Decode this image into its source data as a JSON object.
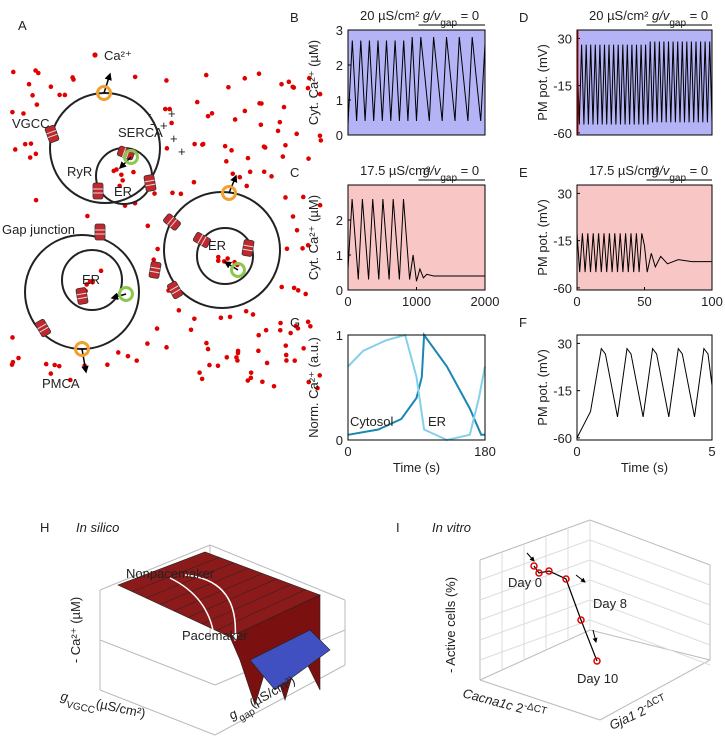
{
  "panels": {
    "A": {
      "label": "A",
      "ca": "Ca²⁺",
      "vgcc": "VGCC",
      "serca": "SERCA",
      "ryr": "RyR",
      "er": "ER",
      "gap_junction": "Gap junction",
      "pmca": "PMCA",
      "plus": "+",
      "minus": "-"
    },
    "H": {
      "label": "H",
      "title": "In silico",
      "nonpacemaker": "Nonpacemaker",
      "pacemaker": "Pacemaker",
      "zlabel": "- Ca²⁺ (µM)",
      "xlabel": {
        "main": "g",
        "sub": "VGCC",
        "rest": "(µS/cm²)"
      },
      "ylabel": {
        "main": "g",
        "sub": "gap",
        "rest": "(µS/cm²)"
      }
    },
    "I": {
      "label": "I",
      "title": "In vitro",
      "day0": "Day 0",
      "day8": "Day 8",
      "day10": "Day 10",
      "zlabel": "- Active cells (%)",
      "xlabel": {
        "main": "Cacna1c",
        "rest": " 2",
        "sup": "-ΔCT"
      },
      "ylabel": {
        "main": "Gja1",
        "rest": " 2",
        "sup": "-ΔCT"
      }
    }
  },
  "chart_data": [
    {
      "type": "line",
      "label": "B",
      "condition": "20 µS/cm²",
      "switch": {
        "main": "g/v",
        "sub": "gap",
        "rest": " = 0"
      },
      "ylabel": "Cyt. Ca²⁺ (µM)",
      "ylim": [
        0,
        3
      ],
      "yticks": [
        0,
        1,
        2,
        3
      ],
      "background": "#b3b3f5",
      "series": [
        {
          "color": "#000000",
          "values": [
            0.3,
            2.7,
            0.4,
            2.7,
            0.4,
            2.7,
            0.4,
            2.7,
            0.4,
            2.7,
            0.4,
            2.7,
            0.4,
            2.7,
            0.4,
            2.8,
            0.4,
            2.8,
            1.6,
            0.4,
            2.8,
            1.6,
            0.4,
            2.8,
            1.6,
            0.4,
            2.8,
            1.6,
            0.4,
            2.8,
            1.6,
            0.4,
            2.6
          ]
        }
      ]
    },
    {
      "type": "line",
      "label": "C",
      "condition": "17.5 µS/cm²",
      "switch": {
        "main": "g/v",
        "sub": "gap",
        "rest": " = 0"
      },
      "ylabel": "Cyt. Ca²⁺ (µM)",
      "xlim": [
        0,
        2000
      ],
      "xticks": [
        0,
        1000,
        2000
      ],
      "ylim": [
        0,
        3
      ],
      "yticks": [
        0,
        1,
        2
      ],
      "background": "#f9c6c6",
      "series": [
        {
          "color": "#000000",
          "x": [
            0,
            60,
            150,
            210,
            300,
            360,
            450,
            510,
            600,
            660,
            750,
            810,
            900,
            950,
            1000,
            1050,
            1100,
            1150,
            1250,
            2000
          ],
          "values": [
            0.6,
            2.6,
            0.3,
            2.6,
            0.3,
            2.6,
            0.3,
            2.6,
            0.3,
            2.6,
            0.3,
            2.6,
            0.3,
            1.0,
            0.25,
            0.6,
            0.35,
            0.45,
            0.4,
            0.4
          ]
        }
      ]
    },
    {
      "type": "line",
      "label": "D",
      "condition": "20 µS/cm²",
      "switch": {
        "main": "g/v",
        "sub": "gap",
        "rest": " = 0"
      },
      "ylabel": "PM pot. (mV)",
      "ylim": [
        -62,
        38
      ],
      "yticks": [
        30,
        -15,
        -60
      ],
      "background": "#b3b3f5",
      "series": [
        {
          "color": "#000000",
          "values": [
            24,
            -52,
            24,
            -52,
            24,
            -52,
            24,
            -52,
            24,
            -52,
            24,
            -52,
            24,
            -52,
            24,
            -52,
            24,
            -52,
            24,
            -52,
            24,
            -52,
            24,
            -52,
            24,
            -52,
            24,
            -52,
            24,
            -52,
            24,
            -52,
            27,
            -50,
            27,
            -50,
            27,
            -50,
            27,
            -50,
            27,
            -50,
            27,
            -50,
            27,
            -50,
            27,
            -50,
            27,
            -50,
            27,
            -50,
            27,
            -50,
            27,
            -50,
            27,
            -50,
            27,
            -50
          ]
        }
      ]
    },
    {
      "type": "line",
      "label": "E",
      "condition": "17.5 µS/cm²",
      "switch": {
        "main": "g/v",
        "sub": "gap",
        "rest": " = 0"
      },
      "ylabel": "PM pot. (mV)",
      "xlim": [
        0,
        100
      ],
      "xticks": [
        0,
        50,
        100
      ],
      "ylim": [
        -62,
        38
      ],
      "yticks": [
        30,
        -15,
        -60
      ],
      "background": "#f9c6c6",
      "series": [
        {
          "color": "#000000",
          "x": [
            0,
            2,
            4,
            6,
            8,
            10,
            12,
            14,
            16,
            18,
            20,
            22,
            24,
            26,
            28,
            30,
            32,
            34,
            36,
            38,
            40,
            42,
            44,
            46,
            48,
            50,
            52,
            55,
            58,
            62,
            67,
            75,
            85,
            100
          ],
          "values": [
            -8,
            -45,
            -8,
            -45,
            -8,
            -45,
            -8,
            -45,
            -8,
            -45,
            -8,
            -45,
            -8,
            -45,
            -8,
            -45,
            -8,
            -45,
            -8,
            -45,
            -8,
            -45,
            -8,
            -45,
            -8,
            -20,
            -45,
            -27,
            -40,
            -30,
            -37,
            -33,
            -35,
            -35
          ]
        }
      ]
    },
    {
      "type": "line",
      "label": "G",
      "ylabel": "Norm. Ca²⁺ (a.u.)",
      "xlabel": "Time (s)",
      "xlim": [
        0,
        180
      ],
      "xticks": [
        0,
        180
      ],
      "ylim": [
        0,
        1
      ],
      "yticks": [
        0,
        1
      ],
      "background": "#ffffff",
      "series": [
        {
          "name": "Cytosol",
          "color": "#1a86b4",
          "x": [
            0,
            40,
            70,
            90,
            97,
            100,
            130,
            160,
            175,
            180
          ],
          "values": [
            0.05,
            0.1,
            0.2,
            0.4,
            0.6,
            1.0,
            0.7,
            0.3,
            0.05,
            0.05
          ]
        },
        {
          "name": "ER",
          "color": "#84d0ea",
          "x": [
            0,
            20,
            50,
            75,
            90,
            100,
            130,
            160,
            172,
            180
          ],
          "values": [
            0.7,
            0.85,
            0.95,
            1.0,
            0.6,
            0.1,
            0.0,
            0.05,
            0.4,
            0.7
          ]
        }
      ]
    },
    {
      "type": "line",
      "label": "F",
      "ylabel": "PM pot. (mV)",
      "xlabel": "Time (s)",
      "xlim": [
        0,
        5
      ],
      "xticks": [
        0,
        5
      ],
      "ylim": [
        -62,
        38
      ],
      "yticks": [
        30,
        -15,
        -60
      ],
      "background": "#ffffff",
      "series": [
        {
          "color": "#000000",
          "x": [
            0,
            0.5,
            0.9,
            1.05,
            1.5,
            1.85,
            2.0,
            2.45,
            2.8,
            2.95,
            3.4,
            3.75,
            3.9,
            4.35,
            4.7,
            4.85,
            5.0
          ],
          "values": [
            -60,
            -35,
            25,
            20,
            -40,
            25,
            20,
            -40,
            25,
            20,
            -40,
            25,
            20,
            -40,
            25,
            20,
            -10
          ]
        }
      ]
    }
  ]
}
